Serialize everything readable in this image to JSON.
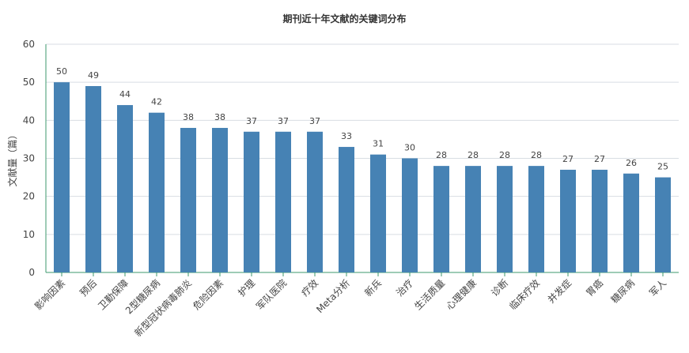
{
  "chart_data": {
    "type": "bar",
    "title": "期刊近十年文献的关键词分布",
    "xlabel": "",
    "ylabel": "文献量（篇）",
    "ylim": [
      0,
      60
    ],
    "yticks": [
      0,
      10,
      20,
      30,
      40,
      50,
      60
    ],
    "grid": true,
    "bar_color": "#4682b4",
    "grid_color": "#d8dde3",
    "axis_color": "#3c9a6e",
    "categories": [
      "影响因素",
      "预后",
      "卫勤保障",
      "2型糖尿病",
      "新型冠状病毒肺炎",
      "危险因素",
      "护理",
      "军队医院",
      "疗效",
      "Meta分析",
      "新兵",
      "治疗",
      "生活质量",
      "心理健康",
      "诊断",
      "临床疗效",
      "并发症",
      "胃癌",
      "糖尿病",
      "军人"
    ],
    "values": [
      50,
      49,
      44,
      42,
      38,
      38,
      37,
      37,
      37,
      33,
      31,
      30,
      28,
      28,
      28,
      28,
      27,
      27,
      26,
      25
    ]
  }
}
